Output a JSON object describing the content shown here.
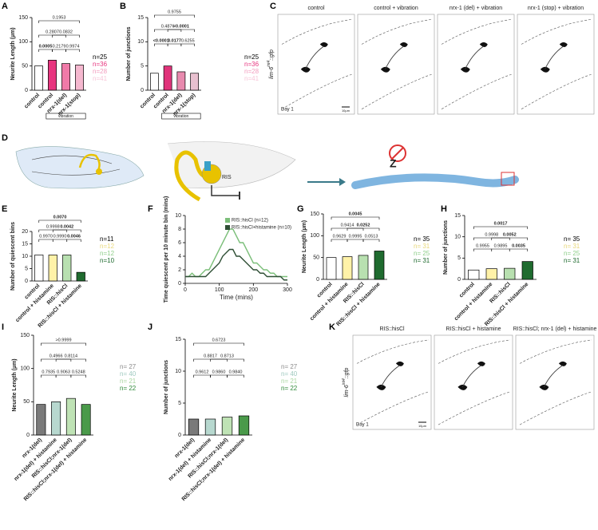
{
  "panel_letters": [
    "A",
    "B",
    "C",
    "D",
    "E",
    "F",
    "G",
    "H",
    "I",
    "J",
    "K"
  ],
  "chart_data": [
    {
      "type": "bar",
      "ylabel": "Neurite Length (µm)",
      "categories": [
        "control",
        "control",
        "nrx-1(del)",
        "nrx-1(stop)"
      ],
      "values": [
        50,
        62,
        55,
        52
      ],
      "colors": [
        "#ffffff",
        "#e8357f",
        "#f07aa8",
        "#f5b8cf"
      ],
      "ylim": [
        0,
        150
      ],
      "yticks": [
        0,
        50,
        100,
        150
      ],
      "p_values": [
        "0.0005",
        "0.2179",
        "0.9974",
        "0.2807",
        "0.0832",
        "0.1953"
      ],
      "p_bold": [
        true,
        false,
        false,
        false,
        false,
        false
      ],
      "n_labels": [
        "n=25",
        "n=36",
        "n=28",
        "n=41"
      ],
      "n_colors": [
        "#000000",
        "#e8357f",
        "#f29bbd",
        "#f7c6d8"
      ],
      "group_label": "vibration"
    },
    {
      "type": "bar",
      "ylabel": "Number of junctions",
      "categories": [
        "control",
        "control",
        "nrx-1(del)",
        "nrx-1(stop)"
      ],
      "values": [
        3.5,
        5,
        3.8,
        3.5
      ],
      "colors": [
        "#ffffff",
        "#e0337a",
        "#e88aae",
        "#e8c0cf"
      ],
      "ylim": [
        0,
        15
      ],
      "yticks": [
        0,
        5,
        10,
        15
      ],
      "p_values": [
        "<0.0001",
        "0.0177",
        "0.6255",
        "0.4876",
        "<0.0001",
        "0.9755"
      ],
      "p_bold": [
        true,
        true,
        false,
        false,
        true,
        false
      ],
      "n_labels": [
        "n=25",
        "n=36",
        "n=28",
        "n=41"
      ],
      "n_colors": [
        "#000000",
        "#e8357f",
        "#f29bbd",
        "#f7c6d8"
      ],
      "group_label": "vibration"
    },
    {
      "type": "bar",
      "ylabel": "Number of quiescent bins",
      "categories": [
        "control",
        "control + histamine",
        "RIS::hisCl",
        "RIS::hisCl + histamine"
      ],
      "values": [
        10.5,
        10.5,
        10.5,
        3.5
      ],
      "colors": [
        "#ffffff",
        "#fff2a8",
        "#b8e0b0",
        "#1f6b2f"
      ],
      "ylim": [
        0,
        20
      ],
      "yticks": [
        0,
        5,
        10,
        15,
        20
      ],
      "p_values": [
        "0.9970",
        "0.9990",
        "0.0046",
        "0.9998",
        "0.0042",
        "0.0070"
      ],
      "p_bold": [
        false,
        false,
        true,
        false,
        true,
        true
      ],
      "n_labels": [
        "n=11",
        "n=12",
        "n=12",
        "n=10"
      ],
      "n_colors": [
        "#000000",
        "#e8d87a",
        "#8fcf8a",
        "#1f6b2f"
      ]
    },
    {
      "type": "line",
      "ylabel": "Time quiescent per 10 minute bin (mins)",
      "xlabel": "Time (mins)",
      "x": [
        0,
        10,
        20,
        30,
        40,
        50,
        60,
        70,
        80,
        90,
        100,
        110,
        120,
        130,
        140,
        150,
        160,
        170,
        180,
        190,
        200,
        210,
        220,
        230,
        240,
        250,
        260,
        270,
        280,
        290,
        300
      ],
      "xlim": [
        0,
        300
      ],
      "xticks": [
        0,
        100,
        200,
        300
      ],
      "ylim": [
        0,
        10
      ],
      "yticks": [
        0,
        2,
        4,
        6,
        8,
        10
      ],
      "series": [
        {
          "name": "RIS::hisCl (n=12)",
          "color": "#7cbf7a",
          "values": [
            1,
            1,
            1.5,
            1,
            1,
            1.5,
            2,
            2,
            3,
            4,
            5,
            6,
            7,
            8,
            8,
            7,
            6,
            6,
            5,
            4,
            3,
            3,
            2.5,
            2,
            2,
            1.5,
            1.5,
            1,
            1,
            1,
            1
          ]
        },
        {
          "name": "RIS::hisCl+histamine (n=10)",
          "color": "#2f4f35",
          "values": [
            1,
            1,
            1,
            1,
            1,
            1,
            1,
            1.5,
            2,
            2.5,
            3,
            4,
            4.5,
            5,
            5,
            4,
            4,
            3.5,
            3,
            2.5,
            2,
            2,
            1.5,
            1.5,
            1,
            1,
            1,
            1,
            1,
            0.5,
            0.5
          ]
        }
      ]
    },
    {
      "type": "bar",
      "ylabel": "Neurite Length (µm)",
      "categories": [
        "control",
        "control + histamine",
        "RIS::hisCl",
        "RIS::hisCl + histamine"
      ],
      "values": [
        50,
        52,
        55,
        65
      ],
      "colors": [
        "#ffffff",
        "#fff2a8",
        "#b8e0b0",
        "#1f6b2f"
      ],
      "ylim": [
        0,
        150
      ],
      "yticks": [
        0,
        50,
        100,
        150
      ],
      "p_values": [
        "0.9629",
        "0.9995",
        "0.0513",
        "0.9414",
        "0.0252",
        "0.0045"
      ],
      "p_bold": [
        false,
        false,
        false,
        false,
        true,
        true
      ],
      "n_labels": [
        "n= 35",
        "n= 31",
        "n= 25",
        "n= 31"
      ],
      "n_colors": [
        "#000000",
        "#e8d87a",
        "#8fcf8a",
        "#1f6b2f"
      ]
    },
    {
      "type": "bar",
      "ylabel": "Number of junctions",
      "categories": [
        "control",
        "control + histamine",
        "RIS::hisCl",
        "RIS::hisCl + histamine"
      ],
      "values": [
        2.2,
        2.5,
        2.6,
        4.2
      ],
      "colors": [
        "#ffffff",
        "#fff2a8",
        "#b8e0b0",
        "#1f6b2f"
      ],
      "ylim": [
        0,
        15
      ],
      "yticks": [
        0,
        5,
        10,
        15
      ],
      "p_values": [
        "0.9955",
        "0.9895",
        "0.0035",
        "0.9998",
        "0.0052",
        "0.0017"
      ],
      "p_bold": [
        false,
        false,
        true,
        false,
        true,
        true
      ],
      "n_labels": [
        "n= 35",
        "n= 31",
        "n= 25",
        "n= 31"
      ],
      "n_colors": [
        "#000000",
        "#e8d87a",
        "#8fcf8a",
        "#1f6b2f"
      ]
    },
    {
      "type": "bar",
      "ylabel": "Neurite Length (µm)",
      "categories": [
        "nrx-1(del)",
        "nrx-1(del) + histamine",
        "RIS::hisCl;nrx-1(del)",
        "RIS::hisCl;nrx-1(del) + histamine"
      ],
      "values": [
        46,
        50,
        55,
        46
      ],
      "colors": [
        "#7a7a7a",
        "#b7d8cf",
        "#bfe3b5",
        "#4a9a4a"
      ],
      "ylim": [
        0,
        150
      ],
      "yticks": [
        0,
        50,
        100,
        150
      ],
      "p_values": [
        "0.7935",
        "0.9063",
        "0.5248",
        "0.4966",
        "0.8114",
        ">0.9999"
      ],
      "p_bold": [
        false,
        false,
        false,
        false,
        false,
        false
      ],
      "n_labels": [
        "n= 27",
        "n= 40",
        "n= 21",
        "n= 22"
      ],
      "n_colors": [
        "#8c8c8c",
        "#9fc9c0",
        "#a8d6a0",
        "#2f8a3a"
      ]
    },
    {
      "type": "bar",
      "ylabel": "Number of junctions",
      "categories": [
        "nrx-1(del)",
        "nrx-1(del) + histamine",
        "RIS::hisCl;nrx-1(del)",
        "RIS::hisCl;nrx-1(del) + histamine"
      ],
      "values": [
        2.5,
        2.5,
        2.8,
        3
      ],
      "colors": [
        "#7a7a7a",
        "#b7d8cf",
        "#bfe3b5",
        "#4a9a4a"
      ],
      "ylim": [
        0,
        15
      ],
      "yticks": [
        0,
        5,
        10,
        15
      ],
      "p_values": [
        "0.9612",
        "0.9860",
        "0.9840",
        "0.8817",
        "0.8713",
        "0.6723"
      ],
      "p_bold": [
        false,
        false,
        false,
        false,
        false,
        false
      ],
      "n_labels": [
        "n= 27",
        "n= 40",
        "n= 21",
        "n= 22"
      ],
      "n_colors": [
        "#8c8c8c",
        "#9fc9c0",
        "#a8d6a0",
        "#2f8a3a"
      ]
    }
  ],
  "image_panels": {
    "C": {
      "titles": [
        "control",
        "control + vibration",
        "nrx-1 (del) + vibration",
        "nrx-1 (stop) + vibration"
      ],
      "gene": "lim-6",
      "allele": "int4",
      "suffix": "::gfp",
      "day": "Day 1",
      "scale": "10µm"
    },
    "D": {
      "neuron": "RIS"
    },
    "K": {
      "titles": [
        "RIS::hisCl",
        "RIS::hisCl + histamine",
        "RIS::hisCl; nrx-1 (del) + histamine"
      ],
      "gene": "lim-6",
      "allele": "int4",
      "suffix": "::gfp",
      "day": "Day 1",
      "scale": "10µm"
    }
  }
}
